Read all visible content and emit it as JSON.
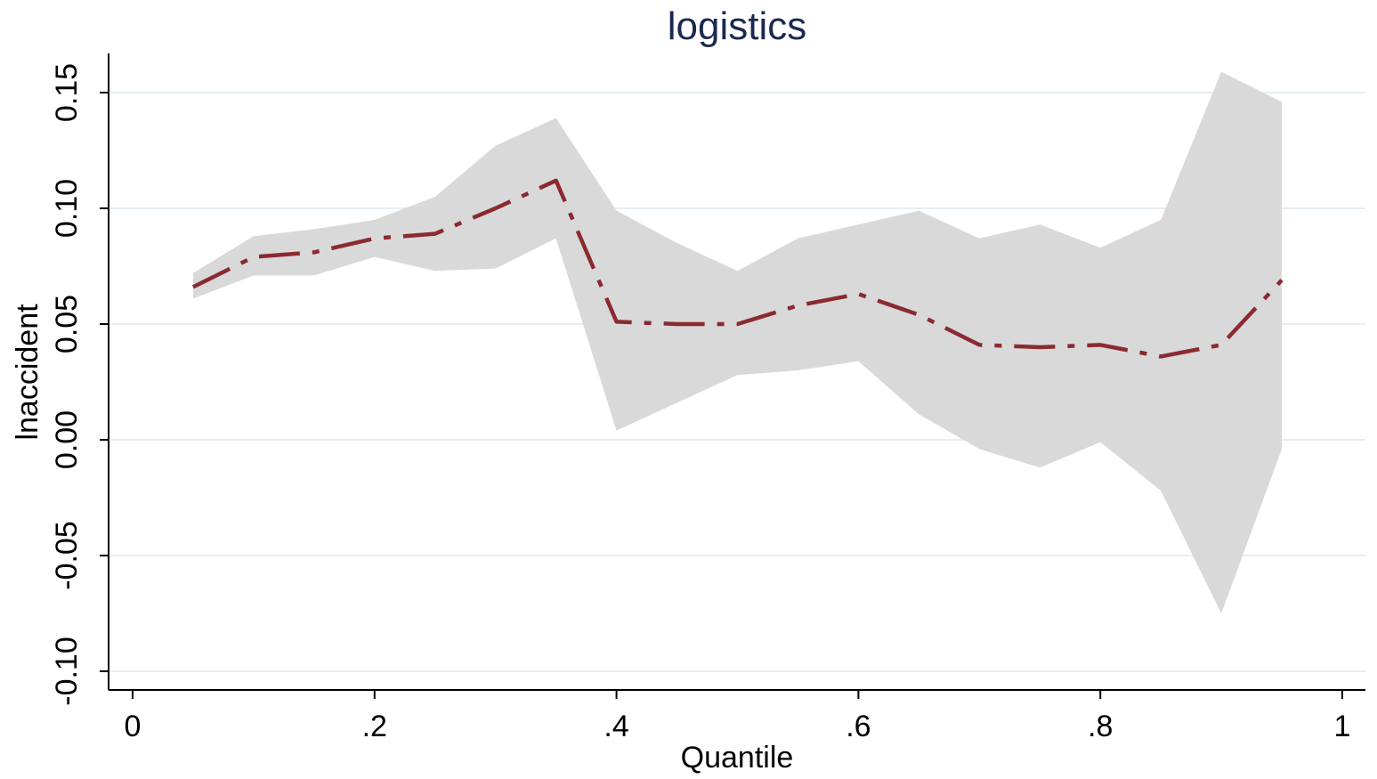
{
  "chart_data": {
    "type": "line",
    "title": "logistics",
    "xlabel": "Quantile",
    "ylabel": "lnaccident",
    "xlim": [
      0,
      1
    ],
    "ylim": [
      -0.1,
      0.15
    ],
    "x_ticks": [
      0,
      0.2,
      0.4,
      0.6,
      0.8,
      1
    ],
    "x_tick_labels": [
      "0",
      ".2",
      ".4",
      ".6",
      ".8",
      "1"
    ],
    "y_ticks": [
      -0.1,
      -0.05,
      0.0,
      0.05,
      0.1,
      0.15
    ],
    "y_tick_labels": [
      "-0.10",
      "-0.05",
      "0.00",
      "0.05",
      "0.10",
      "0.15"
    ],
    "grid": true,
    "legend": "none",
    "x": [
      0.05,
      0.1,
      0.15,
      0.2,
      0.25,
      0.3,
      0.35,
      0.4,
      0.45,
      0.5,
      0.55,
      0.6,
      0.65,
      0.7,
      0.75,
      0.8,
      0.85,
      0.9,
      0.95
    ],
    "series": [
      {
        "values": [
          0.066,
          0.079,
          0.081,
          0.087,
          0.089,
          0.1,
          0.112,
          0.051,
          0.05,
          0.05,
          0.058,
          0.063,
          0.054,
          0.041,
          0.04,
          0.041,
          0.036,
          0.041,
          0.069
        ],
        "color": "#8b2a2f",
        "style": "dash-dot"
      }
    ],
    "band": {
      "upper": [
        0.072,
        0.088,
        0.091,
        0.095,
        0.105,
        0.127,
        0.139,
        0.099,
        0.085,
        0.073,
        0.087,
        0.093,
        0.099,
        0.087,
        0.093,
        0.083,
        0.095,
        0.159,
        0.146
      ],
      "lower": [
        0.061,
        0.071,
        0.071,
        0.079,
        0.073,
        0.074,
        0.087,
        0.004,
        0.016,
        0.028,
        0.03,
        0.034,
        0.011,
        -0.004,
        -0.012,
        -0.001,
        -0.022,
        -0.075,
        -0.004
      ],
      "color": "#d9d9d9"
    },
    "colors": {
      "grid": "#e6eef2",
      "axis": "#000000",
      "title": "#1a2a4f"
    }
  }
}
